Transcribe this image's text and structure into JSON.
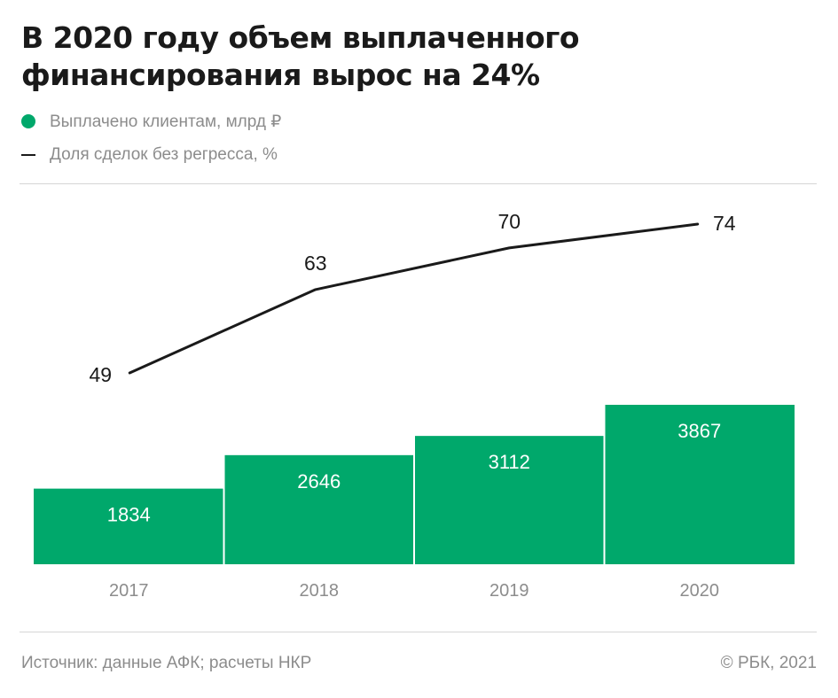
{
  "title": "В 2020 году объем выплаченного финансирования вырос на 24%",
  "legend": [
    {
      "label": "Выплачено клиентам, млрд ₽",
      "marker": "dot"
    },
    {
      "label": "Доля сделок без регресса, %",
      "marker": "line"
    }
  ],
  "footer": {
    "source": "Источник: данные АФК; расчеты НКР",
    "copyright": "© РБК, 2021"
  },
  "colors": {
    "bar": "#00a86b",
    "line": "#1a1a1a",
    "muted_text": "#8c8c8c",
    "rule": "#d6d6d6"
  },
  "chart_data": {
    "type": "bar",
    "categories": [
      "2017",
      "2018",
      "2019",
      "2020"
    ],
    "series": [
      {
        "name": "Выплачено клиентам, млрд ₽",
        "type": "bar",
        "values": [
          1834,
          2646,
          3112,
          3867
        ]
      },
      {
        "name": "Доля сделок без регресса, %",
        "type": "line",
        "values": [
          49,
          63,
          70,
          74
        ]
      }
    ],
    "bar_ylim": [
      0,
      3867
    ],
    "line_ylim": [
      49,
      74
    ],
    "grid": false,
    "legend_position": "top-left"
  }
}
